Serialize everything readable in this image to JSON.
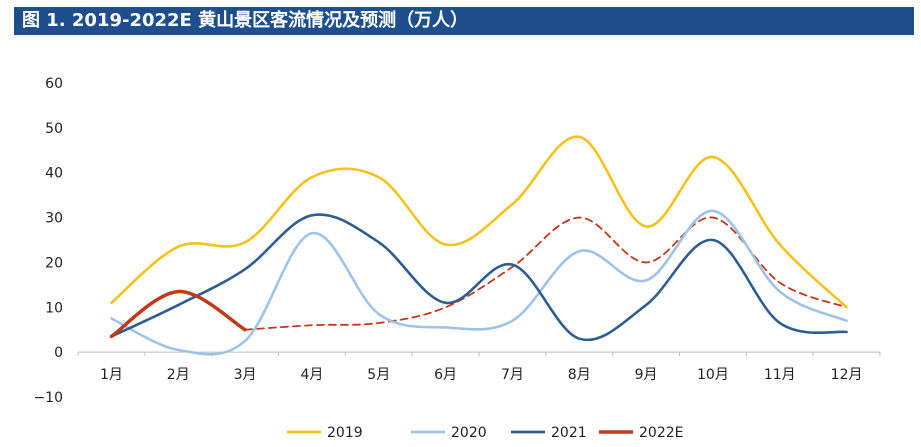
{
  "chart_data": {
    "type": "line",
    "title": "图 1. 2019-2022E 黄山景区客流情况及预测（万人）",
    "xlabel": "",
    "ylabel": "",
    "categories": [
      "1月",
      "2月",
      "3月",
      "4月",
      "5月",
      "6月",
      "7月",
      "8月",
      "9月",
      "10月",
      "11月",
      "12月"
    ],
    "ylim": [
      -10,
      60
    ],
    "yticks": [
      -10,
      0,
      10,
      20,
      30,
      40,
      50,
      60
    ],
    "legend_position": "bottom",
    "series": [
      {
        "name": "2019",
        "color": "#f5c21b",
        "style": "solid",
        "values": [
          11,
          23.5,
          24.5,
          39,
          39,
          24,
          33,
          48,
          28,
          43.5,
          24,
          10
        ]
      },
      {
        "name": "2020",
        "color": "#9dc3e6",
        "style": "solid",
        "values": [
          7.5,
          0.5,
          2.5,
          26.5,
          8.5,
          5.5,
          7,
          22.5,
          16,
          31.5,
          13.5,
          7
        ]
      },
      {
        "name": "2021",
        "color": "#2e5d8e",
        "style": "solid",
        "values": [
          3.5,
          10.5,
          18.5,
          30.5,
          24.5,
          11,
          19.5,
          3,
          10.5,
          25,
          6.5,
          4.5
        ]
      },
      {
        "name": "2022E",
        "color": "#c0391b",
        "style": "solid",
        "values": [
          3.5,
          13.5,
          5,
          null,
          null,
          null,
          null,
          null,
          null,
          null,
          null,
          null
        ]
      },
      {
        "name": "2022E (forecast)",
        "color": "#c0391b",
        "style": "dashed",
        "legend": false,
        "values": [
          null,
          null,
          5,
          6,
          6.5,
          10,
          19,
          30,
          20,
          30,
          15.5,
          10
        ]
      }
    ]
  }
}
